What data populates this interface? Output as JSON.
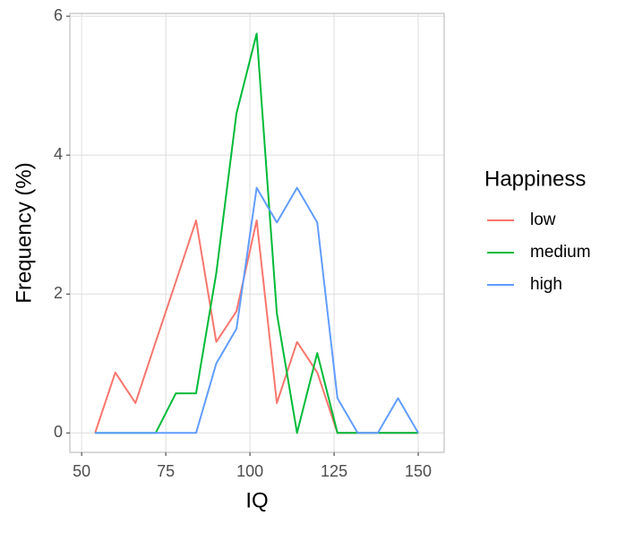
{
  "chart_data": {
    "type": "line",
    "x_label": "IQ",
    "y_label": "Frequency (%)",
    "legend_title": "Happiness",
    "legend_position": "right",
    "x": [
      54,
      60,
      66,
      72,
      78,
      84,
      90,
      96,
      102,
      108,
      114,
      120,
      126,
      132,
      138,
      144,
      150
    ],
    "series": [
      {
        "name": "low",
        "color": "#F8766D",
        "values": [
          0,
          0.87,
          0.43,
          1.31,
          2.18,
          3.06,
          1.31,
          1.75,
          3.06,
          0.43,
          1.31,
          0.87,
          0,
          0,
          0,
          0,
          0
        ]
      },
      {
        "name": "medium",
        "color": "#00BA38",
        "values": [
          0,
          0,
          0,
          0,
          0.57,
          0.57,
          2.3,
          4.6,
          5.75,
          1.72,
          0,
          1.15,
          0,
          0,
          0,
          0,
          0
        ]
      },
      {
        "name": "high",
        "color": "#619CFF",
        "values": [
          0,
          0,
          0,
          0,
          0,
          0,
          1.0,
          1.5,
          3.53,
          3.03,
          3.53,
          3.03,
          0.5,
          0,
          0,
          0.5,
          0
        ]
      }
    ],
    "xlim": [
      46.5,
      157.7
    ],
    "xticks": [
      50,
      75,
      100,
      125,
      150
    ],
    "ylim": [
      -0.28,
      6.04
    ],
    "yticks": [
      0,
      2,
      4,
      6
    ],
    "grid": true
  }
}
